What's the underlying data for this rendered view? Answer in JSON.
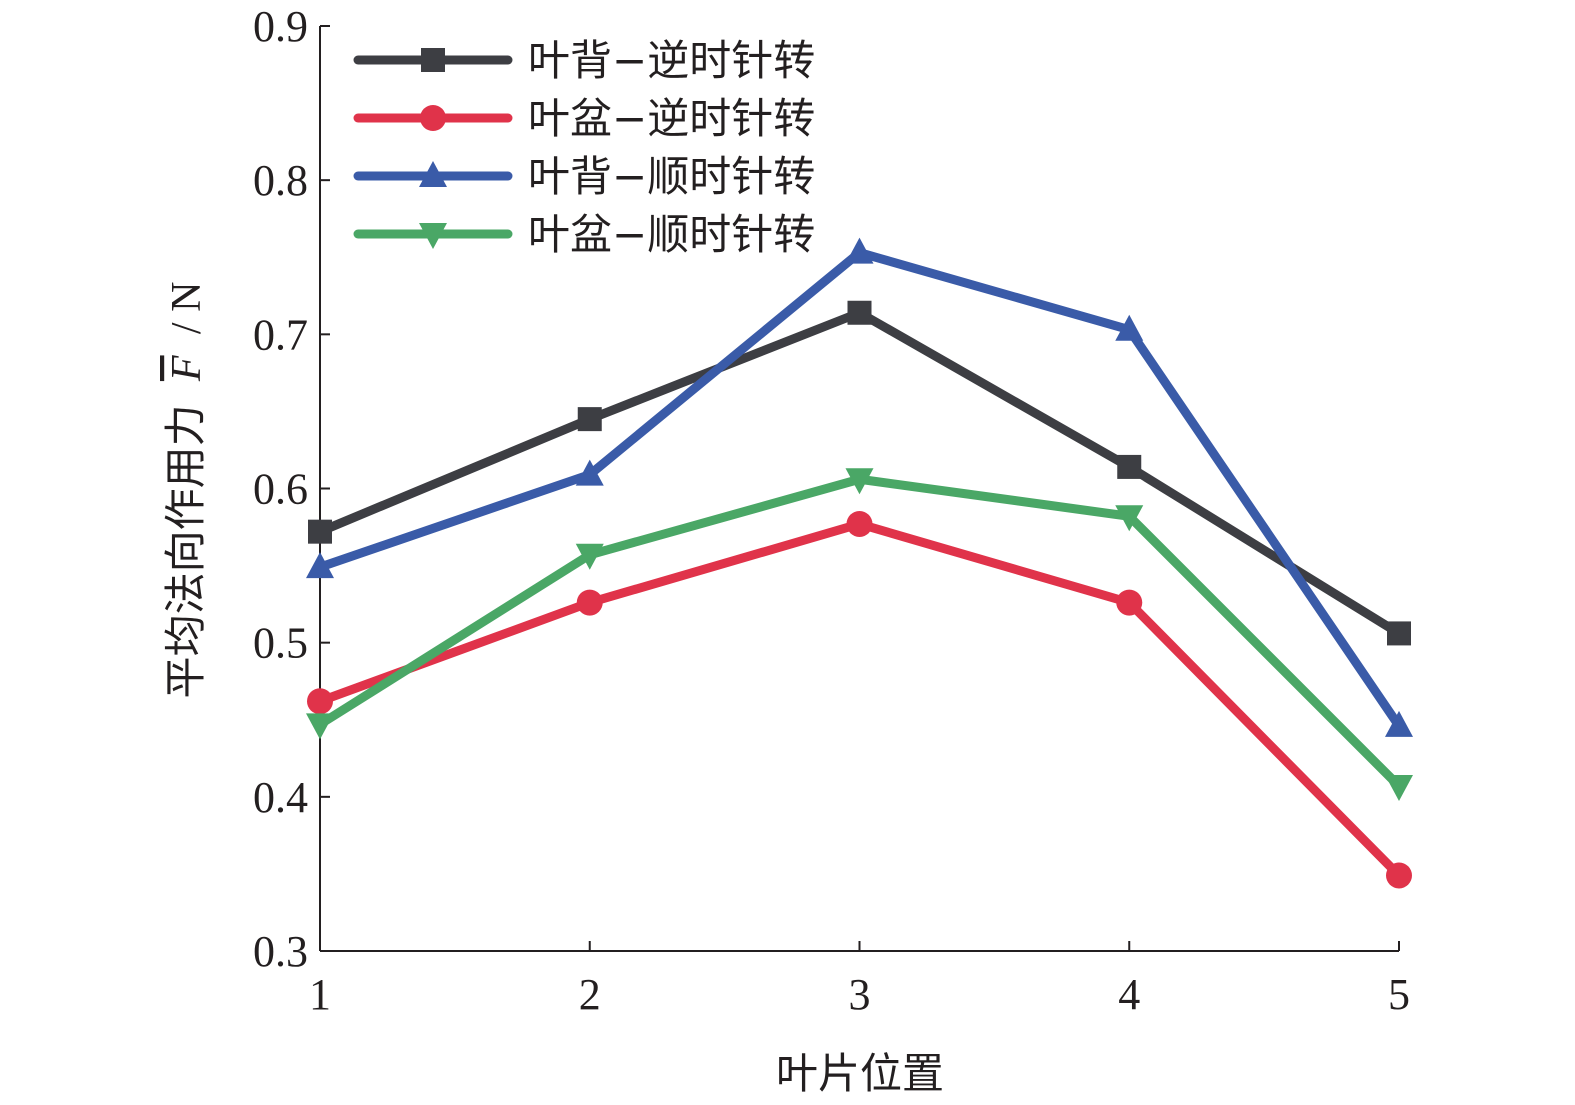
{
  "chart_data": {
    "type": "line",
    "xlabel": "叶片位置",
    "ylabel": "平均法向作用力",
    "ylabel_symbol": "F",
    "ylabel_unit": "/ N",
    "x": [
      1,
      2,
      3,
      4,
      5
    ],
    "xticks": [
      "1",
      "2",
      "3",
      "4",
      "5"
    ],
    "yticks": [
      "0.3",
      "0.4",
      "0.5",
      "0.6",
      "0.7",
      "0.8",
      "0.9"
    ],
    "xlim": [
      1,
      5
    ],
    "ylim": [
      0.3,
      0.9
    ],
    "grid": false,
    "legend_position": "top-left",
    "series": [
      {
        "name": "叶背−逆时针转",
        "marker": "square",
        "color": "#3d3e43",
        "values": [
          0.572,
          0.645,
          0.714,
          0.614,
          0.506
        ]
      },
      {
        "name": "叶盆−逆时针转",
        "marker": "circle",
        "color": "#e0334a",
        "values": [
          0.462,
          0.526,
          0.577,
          0.526,
          0.349
        ]
      },
      {
        "name": "叶背−顺时针转",
        "marker": "triangle-up",
        "color": "#3a5ba8",
        "values": [
          0.549,
          0.609,
          0.753,
          0.703,
          0.446
        ]
      },
      {
        "name": "叶盆−顺时针转",
        "marker": "triangle-down",
        "color": "#4aa766",
        "values": [
          0.447,
          0.557,
          0.606,
          0.582,
          0.407
        ]
      }
    ]
  }
}
